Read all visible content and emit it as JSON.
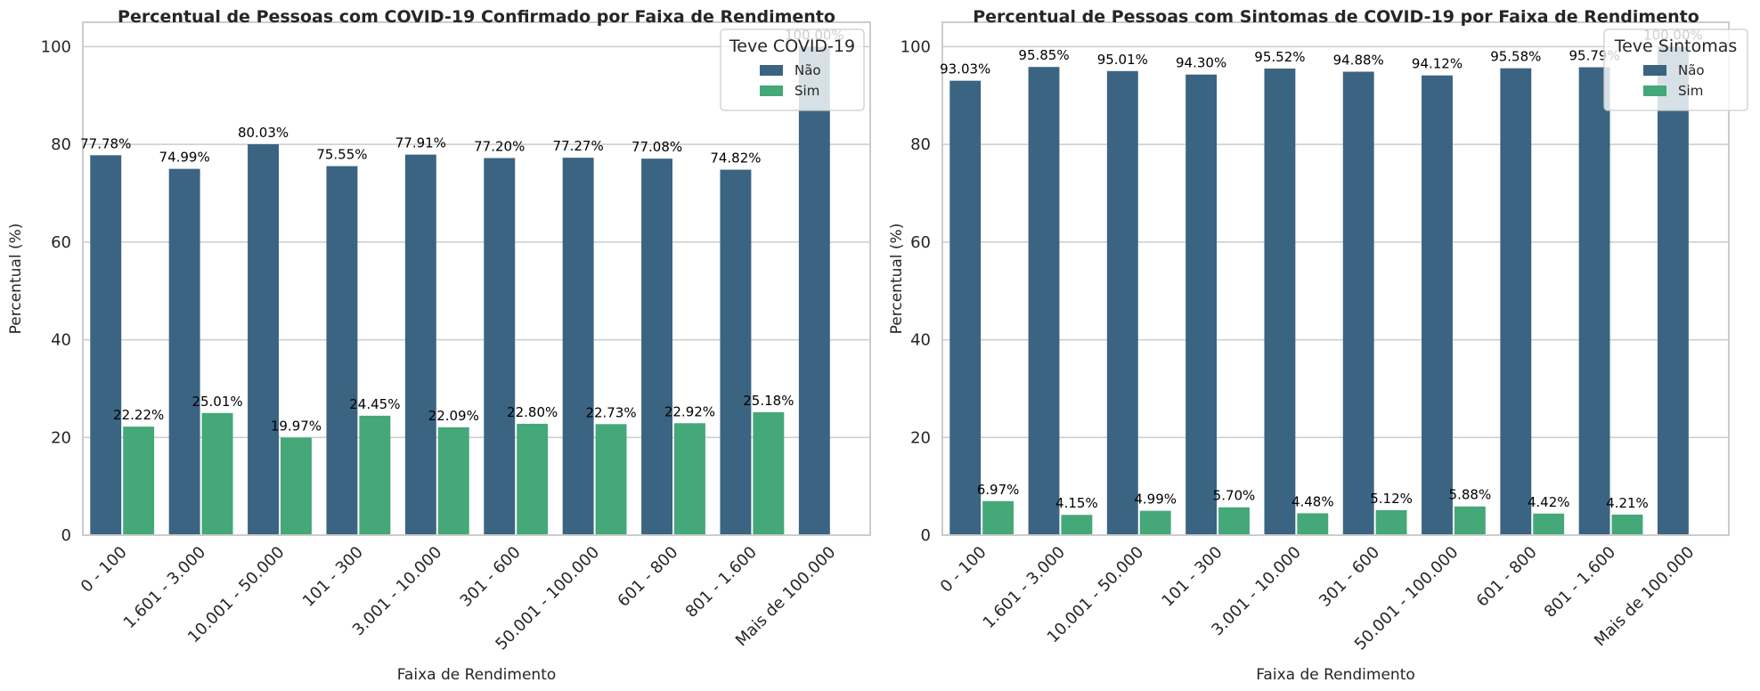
{
  "colors": {
    "nao": "#3b6482",
    "sim": "#44a878",
    "grid": "#cccccc",
    "text": "#262626"
  },
  "chart_data": [
    {
      "type": "bar",
      "title": "Percentual de Pessoas com COVID-19 Confirmado por Faixa de Rendimento",
      "xlabel": "Faixa de Rendimento",
      "ylabel": "Percentual (%)",
      "ylim": [
        0,
        105
      ],
      "yticks": [
        "0",
        "20",
        "40",
        "60",
        "80",
        "100"
      ],
      "grid": true,
      "legend": {
        "title": "Teve COVID-19",
        "placement": "top-right"
      },
      "categories": [
        "0 - 100",
        "1.601 - 3.000",
        "10.001 - 50.000",
        "101 - 300",
        "3.001 - 10.000",
        "301 - 600",
        "50.001 - 100.000",
        "601 - 800",
        "801 - 1.600",
        "Mais de 100.000"
      ],
      "series": [
        {
          "name": "Não",
          "values": [
            77.78,
            74.99,
            80.03,
            75.55,
            77.91,
            77.2,
            77.27,
            77.08,
            74.82,
            100.0
          ],
          "labels": [
            "77.78%",
            "74.99%",
            "80.03%",
            "75.55%",
            "77.91%",
            "77.20%",
            "77.27%",
            "77.08%",
            "74.82%",
            "100.00%"
          ]
        },
        {
          "name": "Sim",
          "values": [
            22.22,
            25.01,
            19.97,
            24.45,
            22.09,
            22.8,
            22.73,
            22.92,
            25.18,
            null
          ],
          "labels": [
            "22.22%",
            "25.01%",
            "19.97%",
            "24.45%",
            "22.09%",
            "22.80%",
            "22.73%",
            "22.92%",
            "25.18%",
            ""
          ]
        }
      ]
    },
    {
      "type": "bar",
      "title": "Percentual de Pessoas com Sintomas de COVID-19 por Faixa de Rendimento",
      "xlabel": "Faixa de Rendimento",
      "ylabel": "Percentual (%)",
      "ylim": [
        0,
        105
      ],
      "yticks": [
        "0",
        "20",
        "40",
        "60",
        "80",
        "100"
      ],
      "grid": true,
      "legend": {
        "title": "Teve Sintomas",
        "placement": "top-right"
      },
      "categories": [
        "0 - 100",
        "1.601 - 3.000",
        "10.001 - 50.000",
        "101 - 300",
        "3.001 - 10.000",
        "301 - 600",
        "50.001 - 100.000",
        "601 - 800",
        "801 - 1.600",
        "Mais de 100.000"
      ],
      "series": [
        {
          "name": "Não",
          "values": [
            93.03,
            95.85,
            95.01,
            94.3,
            95.52,
            94.88,
            94.12,
            95.58,
            95.79,
            100.0
          ],
          "labels": [
            "93.03%",
            "95.85%",
            "95.01%",
            "94.30%",
            "95.52%",
            "94.88%",
            "94.12%",
            "95.58%",
            "95.79%",
            "100.00%"
          ]
        },
        {
          "name": "Sim",
          "values": [
            6.97,
            4.15,
            4.99,
            5.7,
            4.48,
            5.12,
            5.88,
            4.42,
            4.21,
            null
          ],
          "labels": [
            "6.97%",
            "4.15%",
            "4.99%",
            "5.70%",
            "4.48%",
            "5.12%",
            "5.88%",
            "4.42%",
            "4.21%",
            ""
          ]
        }
      ]
    }
  ]
}
